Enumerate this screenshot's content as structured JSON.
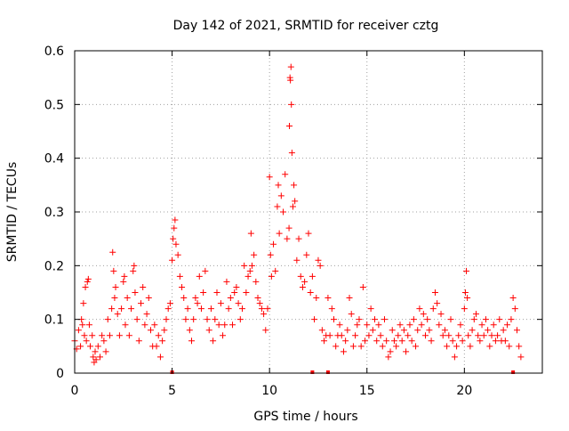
{
  "chart_data": {
    "type": "scatter",
    "title": "Day 142 of 2021, SRMTID for receiver cztg",
    "xlabel": "GPS time / hours",
    "ylabel": "SRMTID / TECUs",
    "xlim": [
      0,
      24
    ],
    "ylim": [
      0,
      0.6
    ],
    "xticks": [
      0,
      5,
      10,
      15,
      20
    ],
    "xtick_labels": [
      "0",
      "5",
      "10",
      "15",
      "20"
    ],
    "yticks": [
      0,
      0.1,
      0.2,
      0.3,
      0.4,
      0.5,
      0.6
    ],
    "ytick_labels": [
      "0",
      "0.1",
      "0.2",
      "0.3",
      "0.4",
      "0.5",
      "0.6"
    ],
    "grid": true,
    "marker": "+",
    "color": "#ff0000",
    "series": [
      {
        "name": "SRMTID",
        "points": [
          [
            0.0,
            0.06
          ],
          [
            0.1,
            0.045
          ],
          [
            0.2,
            0.08
          ],
          [
            0.3,
            0.05
          ],
          [
            0.35,
            0.1
          ],
          [
            0.4,
            0.09
          ],
          [
            0.45,
            0.13
          ],
          [
            0.5,
            0.07
          ],
          [
            0.55,
            0.16
          ],
          [
            0.6,
            0.06
          ],
          [
            0.65,
            0.17
          ],
          [
            0.7,
            0.175
          ],
          [
            0.75,
            0.09
          ],
          [
            0.8,
            0.05
          ],
          [
            0.9,
            0.07
          ],
          [
            0.95,
            0.03
          ],
          [
            1.0,
            0.02
          ],
          [
            1.05,
            0.04
          ],
          [
            1.1,
            0.025
          ],
          [
            1.2,
            0.05
          ],
          [
            1.3,
            0.03
          ],
          [
            1.4,
            0.07
          ],
          [
            1.5,
            0.06
          ],
          [
            1.6,
            0.04
          ],
          [
            1.7,
            0.1
          ],
          [
            1.8,
            0.07
          ],
          [
            1.9,
            0.12
          ],
          [
            1.95,
            0.225
          ],
          [
            2.0,
            0.19
          ],
          [
            2.05,
            0.14
          ],
          [
            2.1,
            0.16
          ],
          [
            2.2,
            0.11
          ],
          [
            2.3,
            0.07
          ],
          [
            2.4,
            0.12
          ],
          [
            2.5,
            0.17
          ],
          [
            2.55,
            0.18
          ],
          [
            2.6,
            0.09
          ],
          [
            2.7,
            0.14
          ],
          [
            2.8,
            0.07
          ],
          [
            2.9,
            0.12
          ],
          [
            3.0,
            0.19
          ],
          [
            3.05,
            0.2
          ],
          [
            3.1,
            0.15
          ],
          [
            3.2,
            0.1
          ],
          [
            3.3,
            0.06
          ],
          [
            3.4,
            0.13
          ],
          [
            3.5,
            0.16
          ],
          [
            3.6,
            0.09
          ],
          [
            3.7,
            0.11
          ],
          [
            3.8,
            0.14
          ],
          [
            3.9,
            0.08
          ],
          [
            4.0,
            0.05
          ],
          [
            4.1,
            0.09
          ],
          [
            4.2,
            0.05
          ],
          [
            4.3,
            0.07
          ],
          [
            4.4,
            0.03
          ],
          [
            4.5,
            0.06
          ],
          [
            4.6,
            0.08
          ],
          [
            4.7,
            0.1
          ],
          [
            4.8,
            0.12
          ],
          [
            4.9,
            0.13
          ],
          [
            5.0,
            0.21
          ],
          [
            5.05,
            0.25
          ],
          [
            5.1,
            0.27
          ],
          [
            5.15,
            0.285
          ],
          [
            5.2,
            0.24
          ],
          [
            5.3,
            0.22
          ],
          [
            5.4,
            0.18
          ],
          [
            5.5,
            0.16
          ],
          [
            5.6,
            0.14
          ],
          [
            5.7,
            0.1
          ],
          [
            5.8,
            0.12
          ],
          [
            5.9,
            0.08
          ],
          [
            6.0,
            0.06
          ],
          [
            6.1,
            0.1
          ],
          [
            6.2,
            0.14
          ],
          [
            6.3,
            0.13
          ],
          [
            6.4,
            0.18
          ],
          [
            6.5,
            0.12
          ],
          [
            6.6,
            0.15
          ],
          [
            6.7,
            0.19
          ],
          [
            6.8,
            0.1
          ],
          [
            6.9,
            0.08
          ],
          [
            7.0,
            0.12
          ],
          [
            7.1,
            0.06
          ],
          [
            7.2,
            0.1
          ],
          [
            7.3,
            0.15
          ],
          [
            7.4,
            0.09
          ],
          [
            7.5,
            0.13
          ],
          [
            7.6,
            0.07
          ],
          [
            7.7,
            0.09
          ],
          [
            7.8,
            0.17
          ],
          [
            7.9,
            0.12
          ],
          [
            8.0,
            0.14
          ],
          [
            8.1,
            0.09
          ],
          [
            8.2,
            0.15
          ],
          [
            8.3,
            0.16
          ],
          [
            8.4,
            0.13
          ],
          [
            8.5,
            0.1
          ],
          [
            8.6,
            0.12
          ],
          [
            8.7,
            0.2
          ],
          [
            8.8,
            0.15
          ],
          [
            8.9,
            0.18
          ],
          [
            9.0,
            0.19
          ],
          [
            9.05,
            0.26
          ],
          [
            9.1,
            0.2
          ],
          [
            9.2,
            0.22
          ],
          [
            9.3,
            0.17
          ],
          [
            9.4,
            0.14
          ],
          [
            9.5,
            0.13
          ],
          [
            9.6,
            0.12
          ],
          [
            9.7,
            0.11
          ],
          [
            9.8,
            0.08
          ],
          [
            9.9,
            0.12
          ],
          [
            10.0,
            0.365
          ],
          [
            10.05,
            0.22
          ],
          [
            10.1,
            0.18
          ],
          [
            10.2,
            0.24
          ],
          [
            10.3,
            0.19
          ],
          [
            10.4,
            0.31
          ],
          [
            10.45,
            0.35
          ],
          [
            10.5,
            0.26
          ],
          [
            10.6,
            0.33
          ],
          [
            10.7,
            0.3
          ],
          [
            10.8,
            0.37
          ],
          [
            10.9,
            0.25
          ],
          [
            11.0,
            0.27
          ],
          [
            11.02,
            0.46
          ],
          [
            11.05,
            0.55
          ],
          [
            11.07,
            0.545
          ],
          [
            11.1,
            0.57
          ],
          [
            11.12,
            0.5
          ],
          [
            11.15,
            0.41
          ],
          [
            11.2,
            0.31
          ],
          [
            11.25,
            0.35
          ],
          [
            11.3,
            0.32
          ],
          [
            11.4,
            0.21
          ],
          [
            11.5,
            0.25
          ],
          [
            11.6,
            0.18
          ],
          [
            11.7,
            0.16
          ],
          [
            11.8,
            0.17
          ],
          [
            11.9,
            0.22
          ],
          [
            12.0,
            0.26
          ],
          [
            12.1,
            0.15
          ],
          [
            12.2,
            0.18
          ],
          [
            12.3,
            0.1
          ],
          [
            12.4,
            0.14
          ],
          [
            12.5,
            0.21
          ],
          [
            12.6,
            0.2
          ],
          [
            12.7,
            0.08
          ],
          [
            12.8,
            0.06
          ],
          [
            12.9,
            0.07
          ],
          [
            13.0,
            0.14
          ],
          [
            13.1,
            0.07
          ],
          [
            13.2,
            0.12
          ],
          [
            13.3,
            0.1
          ],
          [
            13.4,
            0.05
          ],
          [
            13.5,
            0.07
          ],
          [
            13.6,
            0.09
          ],
          [
            13.7,
            0.07
          ],
          [
            13.8,
            0.04
          ],
          [
            13.9,
            0.06
          ],
          [
            14.0,
            0.08
          ],
          [
            14.1,
            0.14
          ],
          [
            14.2,
            0.11
          ],
          [
            14.3,
            0.05
          ],
          [
            14.4,
            0.07
          ],
          [
            14.5,
            0.09
          ],
          [
            14.6,
            0.1
          ],
          [
            14.7,
            0.05
          ],
          [
            14.8,
            0.16
          ],
          [
            14.9,
            0.06
          ],
          [
            15.0,
            0.09
          ],
          [
            15.1,
            0.07
          ],
          [
            15.2,
            0.12
          ],
          [
            15.3,
            0.08
          ],
          [
            15.4,
            0.1
          ],
          [
            15.5,
            0.06
          ],
          [
            15.6,
            0.09
          ],
          [
            15.7,
            0.07
          ],
          [
            15.8,
            0.05
          ],
          [
            15.9,
            0.1
          ],
          [
            16.0,
            0.06
          ],
          [
            16.1,
            0.03
          ],
          [
            16.2,
            0.04
          ],
          [
            16.3,
            0.08
          ],
          [
            16.4,
            0.06
          ],
          [
            16.5,
            0.05
          ],
          [
            16.6,
            0.07
          ],
          [
            16.7,
            0.09
          ],
          [
            16.8,
            0.06
          ],
          [
            16.9,
            0.08
          ],
          [
            17.0,
            0.04
          ],
          [
            17.1,
            0.07
          ],
          [
            17.2,
            0.09
          ],
          [
            17.3,
            0.06
          ],
          [
            17.4,
            0.1
          ],
          [
            17.5,
            0.05
          ],
          [
            17.6,
            0.08
          ],
          [
            17.7,
            0.12
          ],
          [
            17.8,
            0.09
          ],
          [
            17.9,
            0.11
          ],
          [
            18.0,
            0.07
          ],
          [
            18.1,
            0.1
          ],
          [
            18.2,
            0.08
          ],
          [
            18.3,
            0.06
          ],
          [
            18.4,
            0.12
          ],
          [
            18.5,
            0.15
          ],
          [
            18.6,
            0.13
          ],
          [
            18.7,
            0.09
          ],
          [
            18.8,
            0.11
          ],
          [
            18.9,
            0.07
          ],
          [
            19.0,
            0.08
          ],
          [
            19.1,
            0.05
          ],
          [
            19.2,
            0.07
          ],
          [
            19.3,
            0.1
          ],
          [
            19.4,
            0.06
          ],
          [
            19.5,
            0.03
          ],
          [
            19.6,
            0.05
          ],
          [
            19.7,
            0.07
          ],
          [
            19.8,
            0.09
          ],
          [
            19.9,
            0.06
          ],
          [
            20.0,
            0.12
          ],
          [
            20.05,
            0.15
          ],
          [
            20.1,
            0.19
          ],
          [
            20.15,
            0.14
          ],
          [
            20.2,
            0.07
          ],
          [
            20.3,
            0.05
          ],
          [
            20.4,
            0.08
          ],
          [
            20.5,
            0.1
          ],
          [
            20.6,
            0.11
          ],
          [
            20.7,
            0.07
          ],
          [
            20.8,
            0.06
          ],
          [
            20.9,
            0.09
          ],
          [
            21.0,
            0.07
          ],
          [
            21.1,
            0.1
          ],
          [
            21.2,
            0.08
          ],
          [
            21.3,
            0.05
          ],
          [
            21.4,
            0.07
          ],
          [
            21.5,
            0.09
          ],
          [
            21.6,
            0.06
          ],
          [
            21.7,
            0.07
          ],
          [
            21.8,
            0.1
          ],
          [
            21.9,
            0.06
          ],
          [
            22.0,
            0.08
          ],
          [
            22.1,
            0.06
          ],
          [
            22.2,
            0.09
          ],
          [
            22.3,
            0.05
          ],
          [
            22.4,
            0.1
          ],
          [
            22.5,
            0.14
          ],
          [
            22.6,
            0.12
          ],
          [
            22.7,
            0.08
          ],
          [
            22.8,
            0.05
          ],
          [
            22.9,
            0.03
          ]
        ]
      }
    ],
    "zero_markers_x": [
      5.0,
      12.2,
      13.0,
      22.5
    ]
  }
}
